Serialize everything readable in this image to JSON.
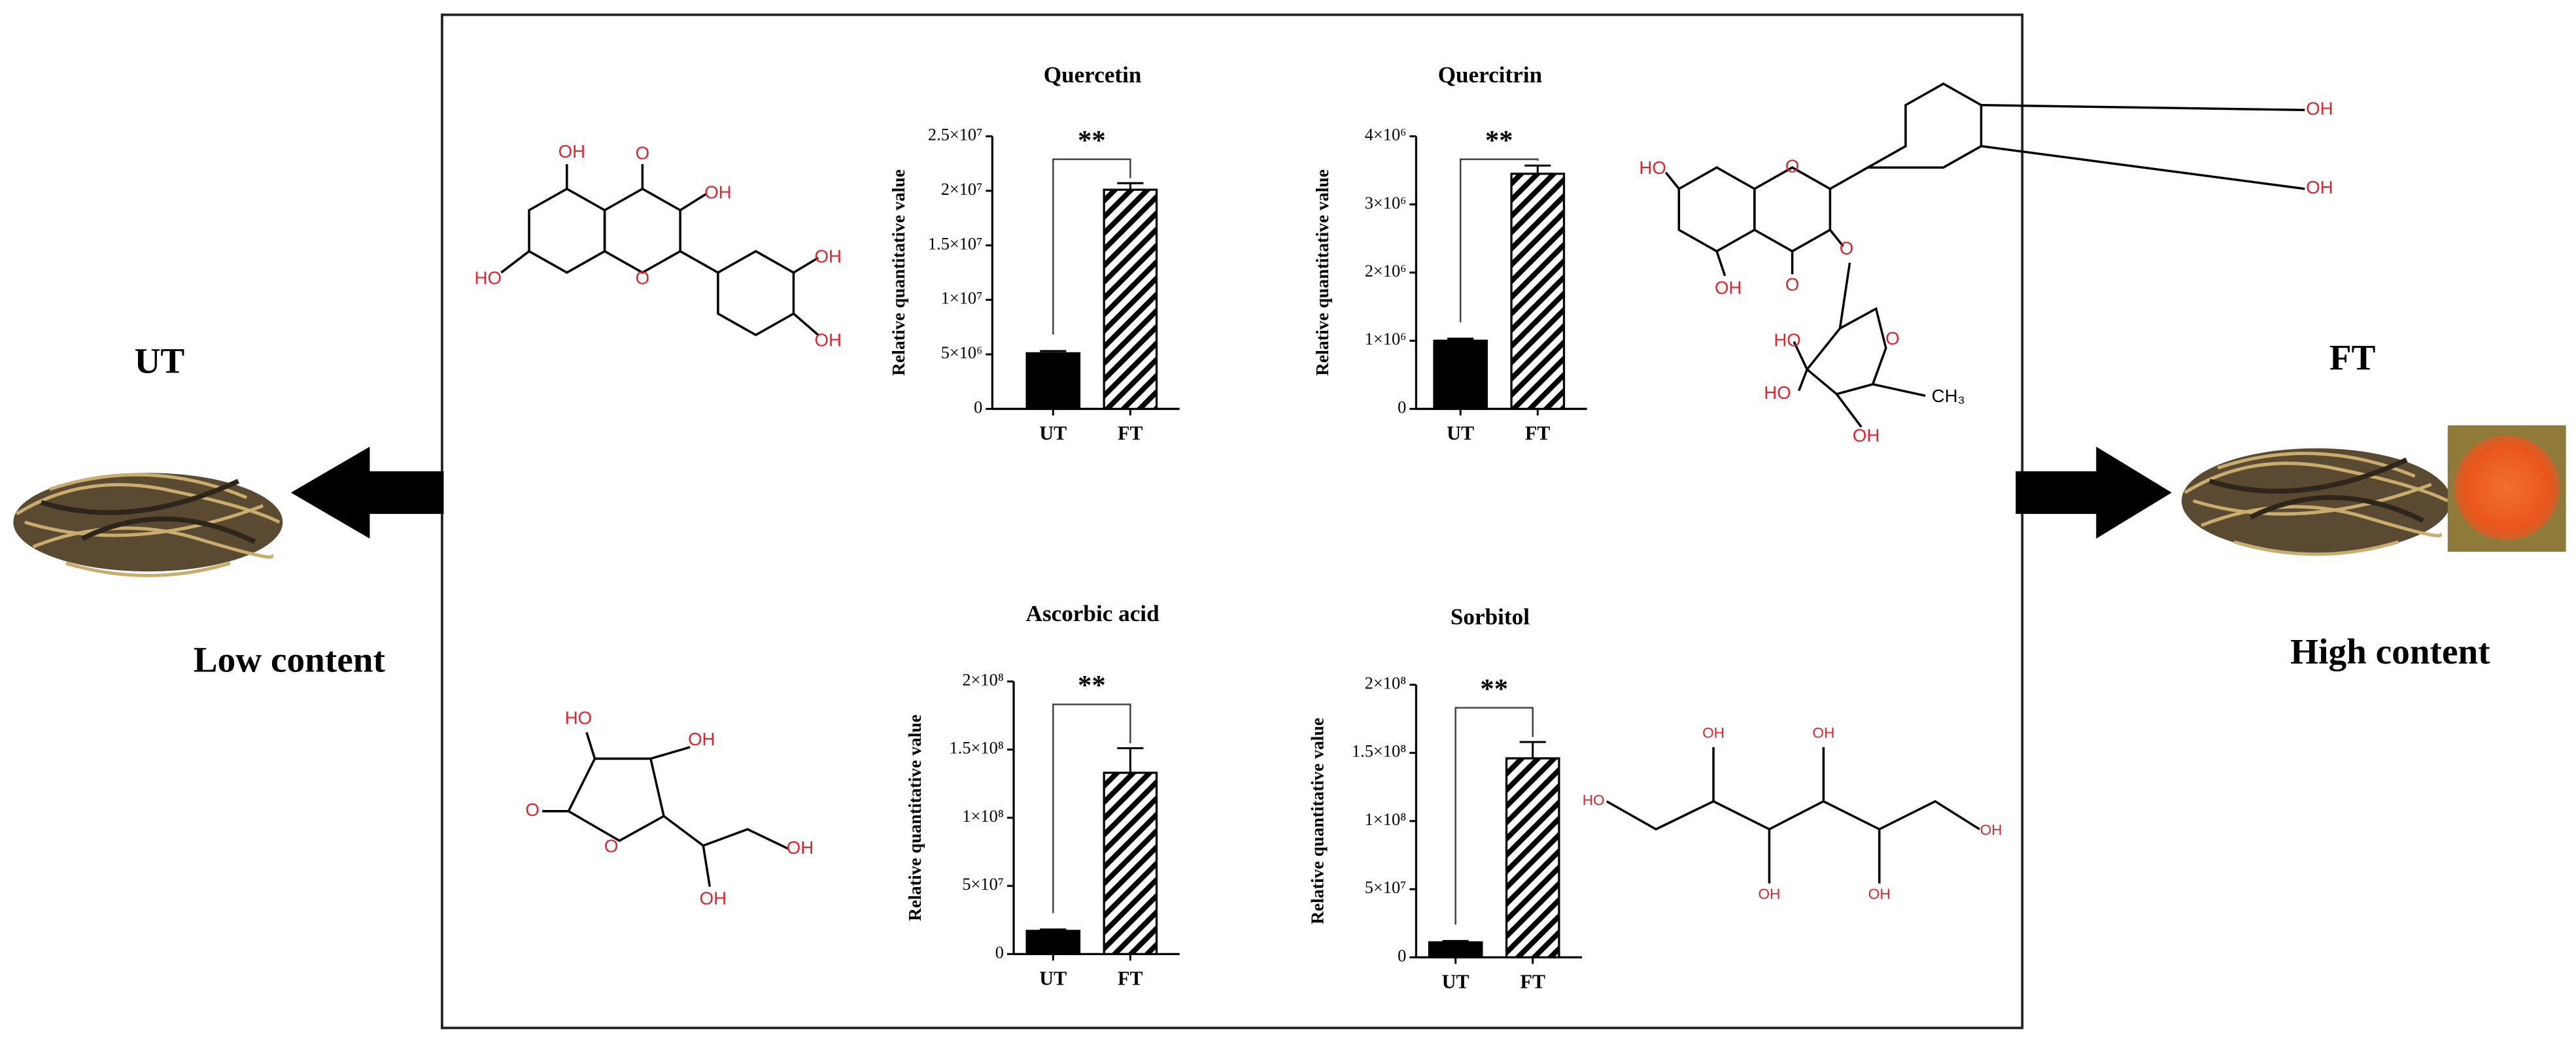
{
  "chart_data": [
    {
      "type": "bar",
      "title": "Quercetin",
      "ylabel": "Relative quantitative value",
      "categories": [
        "UT",
        "FT"
      ],
      "values": [
        5100000,
        20100000
      ],
      "errors": [
        200000,
        600000
      ],
      "colors": [
        "#000000",
        "#000000"
      ],
      "hatched": [
        false,
        true
      ],
      "ylim": [
        0,
        25000000
      ],
      "yticks": [
        0,
        {
          "value": 5000000,
          "label": "5×10⁶"
        },
        {
          "value": 10000000,
          "label": "1×10⁷"
        },
        {
          "value": 15000000,
          "label": "1.5×10⁷"
        },
        {
          "value": 20000000,
          "label": "2×10⁷"
        },
        {
          "value": 25000000,
          "label": "2.5×10⁷"
        }
      ],
      "annotation": "**"
    },
    {
      "type": "bar",
      "title": "Quercitrin",
      "ylabel": "Relative quantitative value",
      "categories": [
        "UT",
        "FT"
      ],
      "values": [
        1000000,
        3450000
      ],
      "errors": [
        30000,
        120000
      ],
      "colors": [
        "#000000",
        "#000000"
      ],
      "hatched": [
        false,
        true
      ],
      "ylim": [
        0,
        4000000
      ],
      "yticks": [
        0,
        {
          "value": 1000000,
          "label": "1×10⁶"
        },
        {
          "value": 2000000,
          "label": "2×10⁶"
        },
        {
          "value": 3000000,
          "label": "3×10⁶"
        },
        {
          "value": 4000000,
          "label": "4×10⁶"
        }
      ],
      "annotation": "**"
    },
    {
      "type": "bar",
      "title": "Ascorbic acid",
      "ylabel": "Relative quantitative value",
      "categories": [
        "UT",
        "FT"
      ],
      "values": [
        17000000,
        133000000
      ],
      "errors": [
        1000000,
        18000000
      ],
      "colors": [
        "#000000",
        "#000000"
      ],
      "hatched": [
        false,
        true
      ],
      "ylim": [
        0,
        200000000
      ],
      "yticks": [
        0,
        {
          "value": 50000000,
          "label": "5×10⁷"
        },
        {
          "value": 100000000,
          "label": "1×10⁸"
        },
        {
          "value": 150000000,
          "label": "1.5×10⁸"
        },
        {
          "value": 200000000,
          "label": "2×10⁸"
        }
      ],
      "annotation": "**"
    },
    {
      "type": "bar",
      "title": "Sorbitol",
      "ylabel": "Relative quantitative value",
      "categories": [
        "UT",
        "FT"
      ],
      "values": [
        11000000,
        146000000
      ],
      "errors": [
        1000000,
        12000000
      ],
      "colors": [
        "#000000",
        "#000000"
      ],
      "hatched": [
        false,
        true
      ],
      "ylim": [
        0,
        200000000
      ],
      "yticks": [
        0,
        {
          "value": 50000000,
          "label": "5×10⁷"
        },
        {
          "value": 100000000,
          "label": "1×10⁸"
        },
        {
          "value": 150000000,
          "label": "1.5×10⁸"
        },
        {
          "value": 200000000,
          "label": "2×10⁸"
        }
      ],
      "annotation": "**"
    }
  ],
  "side_labels": {
    "left_title": "UT",
    "left_note": "Low content",
    "right_title": "FT",
    "right_note": "High content"
  },
  "structures": {
    "quercetin": [
      "OH",
      "O",
      "OH",
      "HO",
      "O",
      "OH",
      "OH"
    ],
    "quercitrin": [
      "OH",
      "HO",
      "O",
      "OH",
      "O",
      "OH",
      "O",
      "HO",
      "O",
      "HO",
      "CH₃",
      "OH"
    ],
    "ascorbic_acid": [
      "HO",
      "OH",
      "O",
      "O",
      "OH",
      "OH"
    ],
    "sorbitol": [
      "OH",
      "OH",
      "HO",
      "OH",
      "OH",
      "OH"
    ]
  }
}
